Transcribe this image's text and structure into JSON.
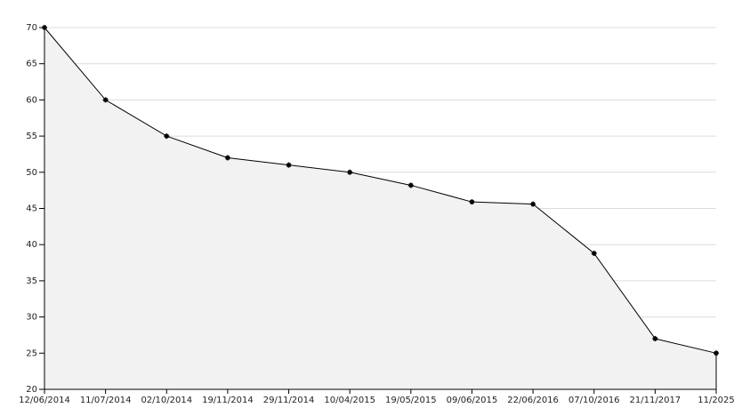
{
  "chart_data": {
    "type": "area",
    "categories": [
      "12/06/2014",
      "11/07/2014",
      "02/10/2014",
      "19/11/2014",
      "29/11/2014",
      "10/04/2015",
      "19/05/2015",
      "09/06/2015",
      "22/06/2016",
      "07/10/2016",
      "21/11/2017",
      "11/2025"
    ],
    "values": [
      70,
      60,
      55,
      52,
      51,
      50,
      48.2,
      45.9,
      45.6,
      38.8,
      27,
      25
    ],
    "color": "#000000",
    "fill": "#f2f2f2",
    "ylim": [
      20,
      70
    ],
    "yticks": [
      20,
      25,
      30,
      35,
      40,
      45,
      50,
      55,
      60,
      65,
      70
    ],
    "grid": true
  }
}
